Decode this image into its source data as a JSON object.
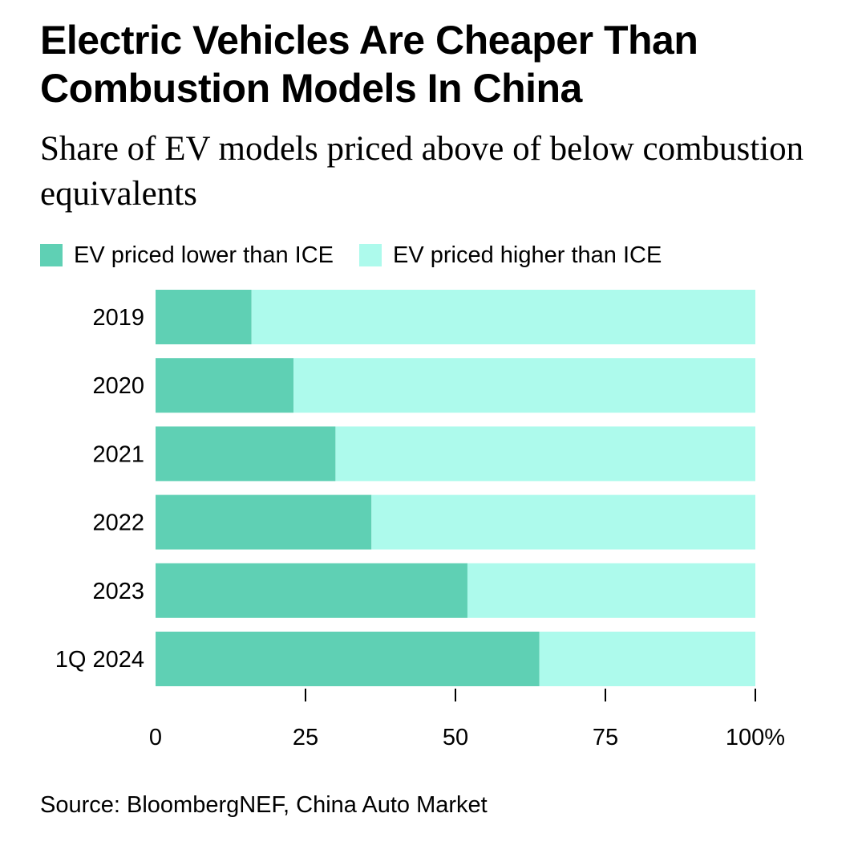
{
  "chart_data": {
    "type": "bar",
    "orientation": "horizontal",
    "stacked": true,
    "title": "Electric Vehicles Are Cheaper Than Combustion Models In China",
    "subtitle": "Share of EV models priced above of below combustion equivalents",
    "categories": [
      "2019",
      "2020",
      "2021",
      "2022",
      "2023",
      "1Q 2024"
    ],
    "series": [
      {
        "name": "EV priced lower than ICE",
        "color": "#5fd0b4",
        "values": [
          16,
          23,
          30,
          36,
          52,
          64
        ]
      },
      {
        "name": "EV priced higher than ICE",
        "color": "#adfaec",
        "values": [
          84,
          77,
          70,
          64,
          48,
          36
        ]
      }
    ],
    "xlim": [
      0,
      100
    ],
    "xticks": [
      0,
      25,
      50,
      75,
      100
    ],
    "xtick_labels": [
      "0",
      "25",
      "50",
      "75",
      "100%"
    ],
    "xlabel": "",
    "ylabel": "",
    "legend": "top-left",
    "grid": false,
    "source": "Source: BloombergNEF, China Auto Market"
  }
}
